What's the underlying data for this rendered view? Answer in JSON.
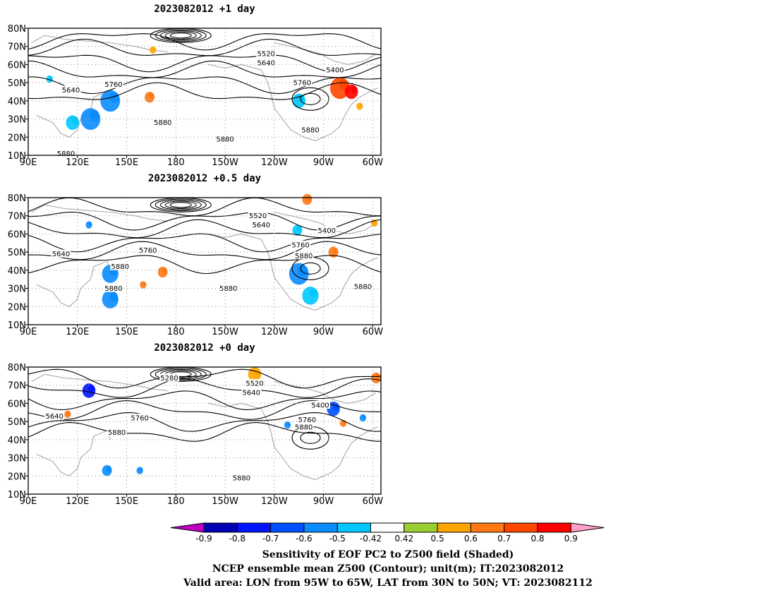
{
  "panels": [
    {
      "title": "2023082012  +1 day"
    },
    {
      "title": "2023082012  +0.5 day"
    },
    {
      "title": "2023082012  +0 day"
    }
  ],
  "axes": {
    "lat_labels": [
      "80N",
      "70N",
      "60N",
      "50N",
      "40N",
      "30N",
      "20N",
      "10N"
    ],
    "lon_labels": [
      "90E",
      "120E",
      "150E",
      "180",
      "150W",
      "120W",
      "90W",
      "60W"
    ]
  },
  "colorbar": {
    "labels": [
      "-0.9",
      "-0.8",
      "-0.7",
      "-0.6",
      "-0.5",
      "-0.42",
      "0.42",
      "0.5",
      "0.6",
      "0.7",
      "0.8",
      "0.9"
    ],
    "colors": [
      "#c000c0",
      "#0000b4",
      "#0014ff",
      "#0050ff",
      "#0a8cff",
      "#00c8ff",
      "#ffffff",
      "#9acd32",
      "#ffa500",
      "#ff7814",
      "#ff4600",
      "#ff0000",
      "#ffa0c8"
    ]
  },
  "footer": [
    "Sensitivity of EOF PC2 to Z500 field (Shaded)",
    "NCEP ensemble mean Z500 (Contour); unit(m); IT:2023082012",
    "Valid area: LON from 95W to 65W, LAT from 30N to 50N; VT: 2023082112"
  ],
  "chart_data": [
    {
      "type": "heatmap",
      "title": "2023082012  +1 day",
      "xlim": [
        90,
        305
      ],
      "ylim": [
        10,
        80
      ],
      "contour_labels": [
        {
          "text": "5520",
          "lon": 235,
          "lat": 66
        },
        {
          "text": "5640",
          "lon": 235,
          "lat": 61
        },
        {
          "text": "5400",
          "lon": 277,
          "lat": 57
        },
        {
          "text": "5760",
          "lon": 257,
          "lat": 50
        },
        {
          "text": "5640",
          "lon": 116,
          "lat": 46
        },
        {
          "text": "5760",
          "lon": 142,
          "lat": 49
        },
        {
          "text": "5880",
          "lon": 172,
          "lat": 28
        },
        {
          "text": "5880",
          "lon": 210,
          "lat": 19
        },
        {
          "text": "5880",
          "lon": 262,
          "lat": 24
        },
        {
          "text": "5880",
          "lon": 113,
          "lat": 11
        }
      ],
      "positive_regions": [
        {
          "lon": 280,
          "lat": 47,
          "r": 6,
          "v": 0.7
        },
        {
          "lon": 287,
          "lat": 45,
          "r": 4,
          "v": 0.8
        },
        {
          "lon": 164,
          "lat": 42,
          "r": 3,
          "v": 0.6
        },
        {
          "lon": 166,
          "lat": 68,
          "r": 2,
          "v": 0.5
        },
        {
          "lon": 292,
          "lat": 37,
          "r": 2,
          "v": 0.5
        }
      ],
      "negative_regions": [
        {
          "lon": 140,
          "lat": 40,
          "r": 6,
          "v": -0.6
        },
        {
          "lon": 128,
          "lat": 30,
          "r": 6,
          "v": -0.6
        },
        {
          "lon": 117,
          "lat": 28,
          "r": 4,
          "v": -0.5
        },
        {
          "lon": 255,
          "lat": 40,
          "r": 4,
          "v": -0.5
        },
        {
          "lon": 103,
          "lat": 52,
          "r": 2,
          "v": -0.5
        }
      ]
    },
    {
      "type": "heatmap",
      "title": "2023082012  +0.5 day",
      "xlim": [
        90,
        305
      ],
      "ylim": [
        10,
        80
      ],
      "contour_labels": [
        {
          "text": "5520",
          "lon": 230,
          "lat": 70
        },
        {
          "text": "5640",
          "lon": 232,
          "lat": 65
        },
        {
          "text": "5400",
          "lon": 272,
          "lat": 62
        },
        {
          "text": "5760",
          "lon": 256,
          "lat": 54
        },
        {
          "text": "5880",
          "lon": 258,
          "lat": 48
        },
        {
          "text": "5640",
          "lon": 110,
          "lat": 49
        },
        {
          "text": "5760",
          "lon": 163,
          "lat": 51
        },
        {
          "text": "5880",
          "lon": 146,
          "lat": 42
        },
        {
          "text": "5880",
          "lon": 142,
          "lat": 30
        },
        {
          "text": "5880",
          "lon": 212,
          "lat": 30
        },
        {
          "text": "5880",
          "lon": 294,
          "lat": 31
        }
      ],
      "positive_regions": [
        {
          "lon": 260,
          "lat": 79,
          "r": 3,
          "v": 0.6
        },
        {
          "lon": 276,
          "lat": 50,
          "r": 3,
          "v": 0.6
        },
        {
          "lon": 160,
          "lat": 32,
          "r": 2,
          "v": 0.6
        },
        {
          "lon": 172,
          "lat": 39,
          "r": 3,
          "v": 0.6
        },
        {
          "lon": 301,
          "lat": 66,
          "r": 2,
          "v": 0.5
        }
      ],
      "negative_regions": [
        {
          "lon": 255,
          "lat": 38,
          "r": 6,
          "v": -0.6
        },
        {
          "lon": 262,
          "lat": 26,
          "r": 5,
          "v": -0.5
        },
        {
          "lon": 140,
          "lat": 38,
          "r": 5,
          "v": -0.6
        },
        {
          "lon": 140,
          "lat": 24,
          "r": 5,
          "v": -0.6
        },
        {
          "lon": 254,
          "lat": 62,
          "r": 3,
          "v": -0.5
        },
        {
          "lon": 127,
          "lat": 65,
          "r": 2,
          "v": -0.6
        }
      ]
    },
    {
      "type": "heatmap",
      "title": "2023082012  +0 day",
      "xlim": [
        90,
        305
      ],
      "ylim": [
        10,
        80
      ],
      "contour_labels": [
        {
          "text": "5280",
          "lon": 176,
          "lat": 74
        },
        {
          "text": "5520",
          "lon": 228,
          "lat": 71
        },
        {
          "text": "5640",
          "lon": 226,
          "lat": 66
        },
        {
          "text": "5400",
          "lon": 268,
          "lat": 59
        },
        {
          "text": "5760",
          "lon": 260,
          "lat": 51
        },
        {
          "text": "5880",
          "lon": 258,
          "lat": 47
        },
        {
          "text": "5640",
          "lon": 106,
          "lat": 53
        },
        {
          "text": "5760",
          "lon": 158,
          "lat": 52
        },
        {
          "text": "5880",
          "lon": 144,
          "lat": 44
        },
        {
          "text": "5880",
          "lon": 220,
          "lat": 19
        }
      ],
      "positive_regions": [
        {
          "lon": 228,
          "lat": 76,
          "r": 4,
          "v": 0.5
        },
        {
          "lon": 282,
          "lat": 49,
          "r": 2,
          "v": 0.6
        },
        {
          "lon": 114,
          "lat": 54,
          "r": 2,
          "v": 0.6
        },
        {
          "lon": 302,
          "lat": 74,
          "r": 3,
          "v": 0.6
        }
      ],
      "negative_regions": [
        {
          "lon": 276,
          "lat": 57,
          "r": 4,
          "v": -0.7
        },
        {
          "lon": 127,
          "lat": 67,
          "r": 4,
          "v": -0.8
        },
        {
          "lon": 138,
          "lat": 23,
          "r": 3,
          "v": -0.6
        },
        {
          "lon": 158,
          "lat": 23,
          "r": 2,
          "v": -0.6
        },
        {
          "lon": 248,
          "lat": 48,
          "r": 2,
          "v": -0.6
        },
        {
          "lon": 294,
          "lat": 52,
          "r": 2,
          "v": -0.6
        }
      ]
    }
  ]
}
